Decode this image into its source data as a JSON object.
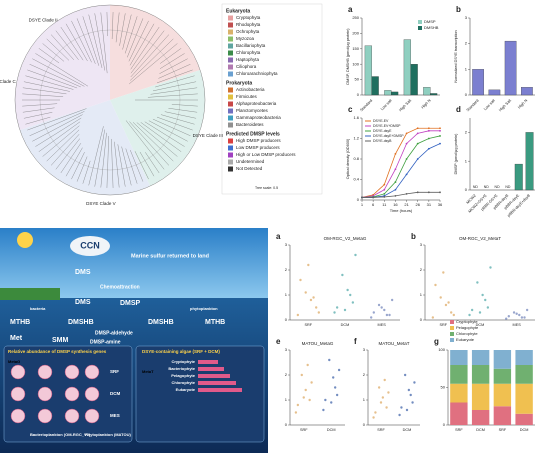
{
  "tree": {
    "clades": [
      "DSYE Clade I",
      "DSYE Clade II",
      "Clade C",
      "DSYE Clade III",
      "DSYE Clade V"
    ],
    "scale": "Tree scale: 0.5",
    "legend": {
      "eukaryota": "Eukaryota",
      "euk_items": [
        {
          "name": "Cryptophyta",
          "color": "#e8a0a0"
        },
        {
          "name": "Rhodophyta",
          "color": "#c05050"
        },
        {
          "name": "Ochrophyta",
          "color": "#d9b26a"
        },
        {
          "name": "Myzozoa",
          "color": "#8bbf6a"
        },
        {
          "name": "Bacillariophyta",
          "color": "#5fa5a0"
        },
        {
          "name": "Chlorophyta",
          "color": "#3c8c4a"
        },
        {
          "name": "Haptophyta",
          "color": "#8a6ab0"
        },
        {
          "name": "Ciliophora",
          "color": "#b07ab0"
        },
        {
          "name": "Chloroarachniophyta",
          "color": "#6aa0d0"
        }
      ],
      "prokaryota": "Prokaryota",
      "pro_items": [
        {
          "name": "Actinobacteria",
          "color": "#d07030"
        },
        {
          "name": "Firmicutes",
          "color": "#e0c040"
        },
        {
          "name": "Alphaproteobacteria",
          "color": "#c84848"
        },
        {
          "name": "Planctomycetes",
          "color": "#7070c0"
        },
        {
          "name": "Gammaproteobacteria",
          "color": "#40a0c0"
        },
        {
          "name": "Bacteroidetes",
          "color": "#909090"
        }
      ],
      "levels_title": "Predicted DMSP levels",
      "levels": [
        {
          "name": "High DMSP producers",
          "color": "#d94040"
        },
        {
          "name": "Low DMSP producers",
          "color": "#4070d0"
        },
        {
          "name": "High or Low DMSP producers",
          "color": "#a040c0"
        },
        {
          "name": "Undetermined",
          "color": "#aaaaaa"
        },
        {
          "name": "Not Detected",
          "color": "#333333"
        }
      ]
    }
  },
  "schematic": {
    "ccn": "CCN",
    "return": "Marine sulfur returned to land",
    "dms_top": "DMS",
    "chemo": "Chemoattraction",
    "dms_mid": "DMS",
    "dmsp": "DMSP",
    "mthb_l": "MTHB",
    "dmshb_l": "DMSHB",
    "dmshb_r": "DMSHB",
    "mthb_r": "MTHB",
    "ald": "DMSP-aldehyde",
    "met": "Met",
    "smm": "SMM",
    "amine": "DMSP-amine",
    "bacteria": "bacteria",
    "phyto": "phytoplankton",
    "abund_title": "Relative abundance of DMSP synthesis genes",
    "algae_title": "DSYE-containing algae (SRF + DCM)",
    "bact": "Bacterioplankton (OM-RGC_V2)",
    "phy": "Phytoplankton (MATOU)",
    "depths": [
      "SRF",
      "DCM",
      "MES"
    ],
    "taxa": [
      "Cryptophyte",
      "Bacteriophyte",
      "Pelagophyte",
      "Chlorophyte",
      "Eukaryote"
    ],
    "metag": "MetaG",
    "metat": "MetaT"
  },
  "chart_data": [
    {
      "type": "bar",
      "panel": "a",
      "ylabel": "DMSP, DMSHB (pmol/μg protein)",
      "categories": [
        "Standard",
        "Low salt",
        "High Salt",
        "High N"
      ],
      "series": [
        {
          "name": "DMSP",
          "color": "#8fcfc0",
          "values": [
            160,
            15,
            180,
            25
          ]
        },
        {
          "name": "DMSHB",
          "color": "#1f6f5f",
          "values": [
            60,
            10,
            100,
            5
          ]
        }
      ],
      "ylim": [
        0,
        250
      ],
      "yticks": [
        0,
        50,
        100,
        150,
        200,
        250
      ]
    },
    {
      "type": "bar",
      "panel": "b",
      "ylabel": "Normalized DSYE transcription",
      "categories": [
        "Standard",
        "Low salt",
        "High Salt",
        "High N"
      ],
      "values": [
        1,
        0.2,
        2.1,
        0.3
      ],
      "color": "#7b7fd0",
      "ylim": [
        0,
        3
      ],
      "yticks": [
        0,
        1,
        2,
        3
      ]
    },
    {
      "type": "line",
      "panel": "c",
      "ylabel": "Optical density (OD600)",
      "xlabel": "Time (hours)",
      "x": [
        1,
        6,
        11,
        16,
        21,
        26,
        31,
        36
      ],
      "series": [
        {
          "name": "DSYE-EV",
          "color": "#e07020",
          "values": [
            0.05,
            0.1,
            0.3,
            0.9,
            1.3,
            1.4,
            1.4,
            1.4
          ]
        },
        {
          "name": "DSYE-EV+DMSP",
          "color": "#c040c0",
          "values": [
            0.05,
            0.08,
            0.2,
            0.6,
            1.1,
            1.3,
            1.35,
            1.35
          ]
        },
        {
          "name": "DSYE-dsyE",
          "color": "#40a040",
          "values": [
            0.05,
            0.06,
            0.12,
            0.35,
            0.8,
            1.1,
            1.2,
            1.25
          ]
        },
        {
          "name": "DSYE-dsyE+DMSP",
          "color": "#3060c0",
          "values": [
            0.05,
            0.05,
            0.08,
            0.2,
            0.5,
            0.8,
            1.0,
            1.1
          ]
        },
        {
          "name": "DSYE-dsyB",
          "color": "#606060",
          "values": [
            0.05,
            0.05,
            0.06,
            0.08,
            0.12,
            0.15,
            0.15,
            0.15
          ]
        }
      ],
      "xlim": [
        1,
        36
      ],
      "xticks": [
        1,
        6,
        11,
        16,
        21,
        26,
        31,
        36
      ],
      "ylim": [
        0,
        1.6
      ],
      "yticks": [
        0,
        0.4,
        0.8,
        1.2,
        1.6
      ]
    },
    {
      "type": "bar",
      "panel": "d",
      "ylabel": "DMSP (pmol/μg protein)",
      "categories": [
        "MCWZ",
        "MCWZ+DSYE",
        "pBBR-DSYE",
        "pBBR-dsyB",
        "pBBR-dsyE",
        "pBBR-dsyE+dsyB"
      ],
      "values": [
        null,
        null,
        null,
        null,
        0.9,
        2.0
      ],
      "value_labels": [
        "ND",
        "ND",
        "ND",
        "ND",
        null,
        null
      ],
      "color": "#3a9a80",
      "ylim": [
        0,
        2.5
      ],
      "yticks": [
        0,
        1,
        2
      ]
    },
    {
      "type": "strip",
      "panel": "a",
      "title": "OM-RGC_V2_MetaG",
      "categories": [
        "SRF",
        "DCM",
        "MES"
      ],
      "colors": [
        "#e0b070",
        "#60b0b0",
        "#8090c0"
      ],
      "values": [
        [
          0.2,
          0.5,
          0.8,
          1.1,
          1.6,
          0.3,
          0.9,
          2.2
        ],
        [
          0.3,
          0.7,
          1.2,
          1.8,
          0.5,
          2.6,
          1.0,
          0.4
        ],
        [
          0.1,
          0.2,
          0.4,
          0.6,
          0.3,
          0.8,
          0.2,
          0.5
        ]
      ],
      "ylim": [
        0,
        3
      ],
      "yticks": [
        0,
        1,
        2,
        3
      ]
    },
    {
      "type": "strip",
      "panel": "b",
      "title": "OM-RGC_V2_MetaT",
      "categories": [
        "SRF",
        "DCM",
        "MES"
      ],
      "colors": [
        "#e0b070",
        "#60b0b0",
        "#8090c0"
      ],
      "values": [
        [
          0.1,
          0.3,
          0.6,
          0.9,
          1.4,
          0.2,
          0.7,
          1.9
        ],
        [
          0.2,
          0.5,
          1.0,
          1.5,
          0.4,
          2.1,
          0.8,
          0.3
        ],
        [
          0.05,
          0.1,
          0.2,
          0.3,
          0.15,
          0.4,
          0.1,
          0.25
        ]
      ],
      "ylim": [
        0,
        3
      ],
      "yticks": [
        0,
        1,
        2,
        3
      ]
    },
    {
      "type": "strip",
      "panel": "e",
      "title": "MATOU_MetaG",
      "categories": [
        "SRF",
        "DCM"
      ],
      "colors": [
        "#e0b070",
        "#5070b0"
      ],
      "values": [
        [
          0.5,
          1.0,
          1.4,
          2.0,
          0.8,
          1.7,
          2.4,
          1.1
        ],
        [
          0.6,
          1.2,
          1.9,
          2.6,
          1.0,
          2.2,
          1.5,
          0.9
        ]
      ],
      "ylim": [
        0,
        3
      ],
      "yticks": [
        0,
        1,
        2,
        3
      ]
    },
    {
      "type": "strip",
      "panel": "f",
      "title": "MATOU_MetaT",
      "categories": [
        "SRF",
        "DCM"
      ],
      "colors": [
        "#e0b070",
        "#5070b0"
      ],
      "values": [
        [
          0.3,
          0.7,
          1.1,
          1.5,
          0.5,
          1.3,
          1.8,
          0.9
        ],
        [
          0.4,
          0.9,
          1.4,
          2.0,
          0.7,
          1.7,
          1.2,
          0.6
        ]
      ],
      "ylim": [
        0,
        3
      ],
      "yticks": [
        0,
        1,
        2,
        3
      ]
    },
    {
      "type": "stacked",
      "panel": "g",
      "categories": [
        "SRF",
        "DCM",
        "SRF",
        "DCM"
      ],
      "series": [
        {
          "name": "Cryptophyte",
          "color": "#e07080",
          "values": [
            30,
            20,
            25,
            15
          ]
        },
        {
          "name": "Pelagophyte",
          "color": "#f0c050",
          "values": [
            25,
            35,
            30,
            40
          ]
        },
        {
          "name": "Chlorophyte",
          "color": "#70b070",
          "values": [
            25,
            25,
            20,
            25
          ]
        },
        {
          "name": "Eukaryote",
          "color": "#80b0d0",
          "values": [
            20,
            20,
            25,
            20
          ]
        }
      ],
      "ylim": [
        0,
        100
      ],
      "yticks": [
        0,
        50,
        100
      ]
    }
  ]
}
